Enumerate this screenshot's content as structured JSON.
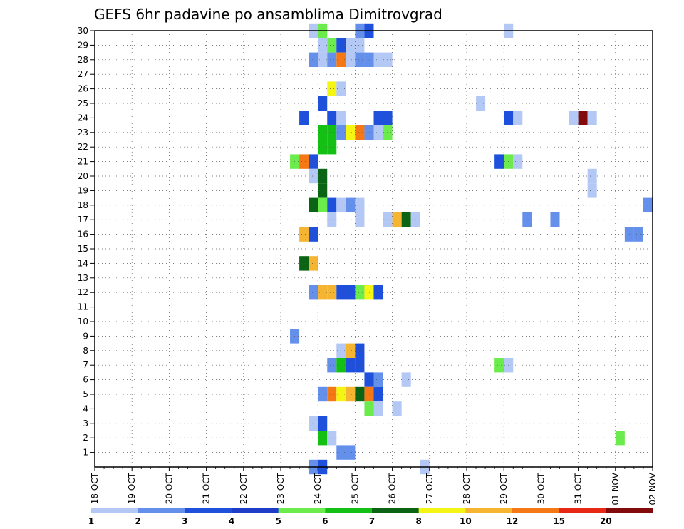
{
  "chart_data": {
    "type": "heatmap",
    "title": "GEFS 6hr padavine po ansamblima Dimitrovgrad",
    "x_ticks": [
      "18 OCT",
      "19 OCT",
      "20 OCT",
      "21 OCT",
      "22 OCT",
      "23 OCT",
      "24 OCT",
      "25 OCT",
      "26 OCT",
      "27 OCT",
      "28 OCT",
      "29 OCT",
      "30 OCT",
      "31 OCT",
      "01 NOV",
      "02 NOV"
    ],
    "y_ticks": [
      "1",
      "2",
      "3",
      "4",
      "5",
      "6",
      "7",
      "8",
      "9",
      "10",
      "11",
      "12",
      "13",
      "14",
      "15",
      "16",
      "17",
      "18",
      "19",
      "20",
      "21",
      "22",
      "23",
      "24",
      "25",
      "26",
      "27",
      "28",
      "29",
      "30"
    ],
    "x_range": [
      "18 OCT 00Z",
      "02 NOV 00Z"
    ],
    "y_range": [
      0,
      30
    ],
    "time_step_hours": 6,
    "grid": true,
    "colorbar_position": "bottom",
    "colorbar": {
      "labels": [
        "1",
        "2",
        "3",
        "4",
        "5",
        "6",
        "7",
        "8",
        "10",
        "12",
        "15",
        "20"
      ],
      "colors": [
        "#b4c8f5",
        "#6490ec",
        "#1e50dc",
        "#1e3cc8",
        "#6cec4c",
        "#14c014",
        "#0a6414",
        "#f5f514",
        "#f5b432",
        "#f57814",
        "#e62814",
        "#820a0a"
      ]
    },
    "points": [
      {
        "t": "23 OCT 18Z",
        "member": 30,
        "value": 1
      },
      {
        "t": "24 OCT 00Z",
        "member": 30,
        "value": 5
      },
      {
        "t": "25 OCT 00Z",
        "member": 30,
        "value": 2
      },
      {
        "t": "25 OCT 06Z",
        "member": 30,
        "value": 3
      },
      {
        "t": "29 OCT 00Z",
        "member": 30,
        "value": 1
      },
      {
        "t": "24 OCT 00Z",
        "member": 29,
        "value": 1
      },
      {
        "t": "24 OCT 06Z",
        "member": 29,
        "value": 5
      },
      {
        "t": "24 OCT 12Z",
        "member": 29,
        "value": 3
      },
      {
        "t": "24 OCT 18Z",
        "member": 29,
        "value": 1
      },
      {
        "t": "25 OCT 00Z",
        "member": 29,
        "value": 1
      },
      {
        "t": "23 OCT 18Z",
        "member": 28,
        "value": 2
      },
      {
        "t": "24 OCT 00Z",
        "member": 28,
        "value": 1
      },
      {
        "t": "24 OCT 06Z",
        "member": 28,
        "value": 2
      },
      {
        "t": "24 OCT 12Z",
        "member": 28,
        "value": 12
      },
      {
        "t": "24 OCT 18Z",
        "member": 28,
        "value": 1
      },
      {
        "t": "25 OCT 00Z",
        "member": 28,
        "value": 2
      },
      {
        "t": "25 OCT 06Z",
        "member": 28,
        "value": 2
      },
      {
        "t": "25 OCT 12Z",
        "member": 28,
        "value": 1
      },
      {
        "t": "25 OCT 18Z",
        "member": 28,
        "value": 1
      },
      {
        "t": "24 OCT 06Z",
        "member": 26,
        "value": 8
      },
      {
        "t": "24 OCT 12Z",
        "member": 26,
        "value": 1
      },
      {
        "t": "24 OCT 00Z",
        "member": 25,
        "value": 3
      },
      {
        "t": "28 OCT 06Z",
        "member": 25,
        "value": 1
      },
      {
        "t": "23 OCT 12Z",
        "member": 24,
        "value": 3
      },
      {
        "t": "24 OCT 06Z",
        "member": 24,
        "value": 3
      },
      {
        "t": "24 OCT 12Z",
        "member": 24,
        "value": 1
      },
      {
        "t": "25 OCT 12Z",
        "member": 24,
        "value": 3
      },
      {
        "t": "25 OCT 18Z",
        "member": 24,
        "value": 3
      },
      {
        "t": "29 OCT 00Z",
        "member": 24,
        "value": 3
      },
      {
        "t": "29 OCT 06Z",
        "member": 24,
        "value": 1
      },
      {
        "t": "30 OCT 18Z",
        "member": 24,
        "value": 1
      },
      {
        "t": "31 OCT 00Z",
        "member": 24,
        "value": 20
      },
      {
        "t": "31 OCT 06Z",
        "member": 24,
        "value": 1
      },
      {
        "t": "24 OCT 00Z",
        "member": 23,
        "value": 6
      },
      {
        "t": "24 OCT 06Z",
        "member": 23,
        "value": 6
      },
      {
        "t": "24 OCT 12Z",
        "member": 23,
        "value": 2
      },
      {
        "t": "24 OCT 18Z",
        "member": 23,
        "value": 8
      },
      {
        "t": "25 OCT 00Z",
        "member": 23,
        "value": 12
      },
      {
        "t": "25 OCT 06Z",
        "member": 23,
        "value": 2
      },
      {
        "t": "25 OCT 12Z",
        "member": 23,
        "value": 1
      },
      {
        "t": "25 OCT 18Z",
        "member": 23,
        "value": 5
      },
      {
        "t": "24 OCT 00Z",
        "member": 22,
        "value": 6
      },
      {
        "t": "24 OCT 06Z",
        "member": 22,
        "value": 6
      },
      {
        "t": "23 OCT 06Z",
        "member": 21,
        "value": 5
      },
      {
        "t": "23 OCT 12Z",
        "member": 21,
        "value": 12
      },
      {
        "t": "23 OCT 18Z",
        "member": 21,
        "value": 3
      },
      {
        "t": "28 OCT 18Z",
        "member": 21,
        "value": 3
      },
      {
        "t": "29 OCT 00Z",
        "member": 21,
        "value": 5
      },
      {
        "t": "29 OCT 06Z",
        "member": 21,
        "value": 1
      },
      {
        "t": "23 OCT 18Z",
        "member": 20,
        "value": 1
      },
      {
        "t": "24 OCT 00Z",
        "member": 20,
        "value": 7
      },
      {
        "t": "31 OCT 06Z",
        "member": 20,
        "value": 1
      },
      {
        "t": "24 OCT 00Z",
        "member": 19,
        "value": 7
      },
      {
        "t": "31 OCT 06Z",
        "member": 19,
        "value": 1
      },
      {
        "t": "23 OCT 18Z",
        "member": 18,
        "value": 7
      },
      {
        "t": "24 OCT 00Z",
        "member": 18,
        "value": 5
      },
      {
        "t": "24 OCT 06Z",
        "member": 18,
        "value": 3
      },
      {
        "t": "24 OCT 12Z",
        "member": 18,
        "value": 1
      },
      {
        "t": "24 OCT 18Z",
        "member": 18,
        "value": 2
      },
      {
        "t": "25 OCT 00Z",
        "member": 18,
        "value": 1
      },
      {
        "t": "01 NOV 18Z",
        "member": 18,
        "value": 2
      },
      {
        "t": "24 OCT 06Z",
        "member": 17,
        "value": 1
      },
      {
        "t": "25 OCT 00Z",
        "member": 17,
        "value": 1
      },
      {
        "t": "25 OCT 18Z",
        "member": 17,
        "value": 1
      },
      {
        "t": "26 OCT 00Z",
        "member": 17,
        "value": 10
      },
      {
        "t": "26 OCT 06Z",
        "member": 17,
        "value": 7
      },
      {
        "t": "26 OCT 12Z",
        "member": 17,
        "value": 1
      },
      {
        "t": "29 OCT 12Z",
        "member": 17,
        "value": 2
      },
      {
        "t": "30 OCT 06Z",
        "member": 17,
        "value": 2
      },
      {
        "t": "23 OCT 12Z",
        "member": 16,
        "value": 10
      },
      {
        "t": "23 OCT 18Z",
        "member": 16,
        "value": 3
      },
      {
        "t": "01 NOV 06Z",
        "member": 16,
        "value": 2
      },
      {
        "t": "01 NOV 12Z",
        "member": 16,
        "value": 2
      },
      {
        "t": "23 OCT 12Z",
        "member": 14,
        "value": 7
      },
      {
        "t": "23 OCT 18Z",
        "member": 14,
        "value": 10
      },
      {
        "t": "23 OCT 18Z",
        "member": 12,
        "value": 2
      },
      {
        "t": "24 OCT 00Z",
        "member": 12,
        "value": 10
      },
      {
        "t": "24 OCT 06Z",
        "member": 12,
        "value": 10
      },
      {
        "t": "24 OCT 12Z",
        "member": 12,
        "value": 3
      },
      {
        "t": "24 OCT 18Z",
        "member": 12,
        "value": 3
      },
      {
        "t": "25 OCT 00Z",
        "member": 12,
        "value": 5
      },
      {
        "t": "25 OCT 06Z",
        "member": 12,
        "value": 8
      },
      {
        "t": "25 OCT 12Z",
        "member": 12,
        "value": 3
      },
      {
        "t": "23 OCT 06Z",
        "member": 9,
        "value": 2
      },
      {
        "t": "24 OCT 12Z",
        "member": 8,
        "value": 1
      },
      {
        "t": "24 OCT 18Z",
        "member": 8,
        "value": 10
      },
      {
        "t": "25 OCT 00Z",
        "member": 8,
        "value": 3
      },
      {
        "t": "24 OCT 06Z",
        "member": 7,
        "value": 2
      },
      {
        "t": "24 OCT 12Z",
        "member": 7,
        "value": 6
      },
      {
        "t": "24 OCT 18Z",
        "member": 7,
        "value": 3
      },
      {
        "t": "25 OCT 00Z",
        "member": 7,
        "value": 3
      },
      {
        "t": "28 OCT 18Z",
        "member": 7,
        "value": 5
      },
      {
        "t": "29 OCT 00Z",
        "member": 7,
        "value": 1
      },
      {
        "t": "25 OCT 06Z",
        "member": 6,
        "value": 3
      },
      {
        "t": "25 OCT 12Z",
        "member": 6,
        "value": 2
      },
      {
        "t": "26 OCT 06Z",
        "member": 6,
        "value": 1
      },
      {
        "t": "24 OCT 00Z",
        "member": 5,
        "value": 2
      },
      {
        "t": "24 OCT 06Z",
        "member": 5,
        "value": 12
      },
      {
        "t": "24 OCT 12Z",
        "member": 5,
        "value": 8
      },
      {
        "t": "24 OCT 18Z",
        "member": 5,
        "value": 10
      },
      {
        "t": "25 OCT 00Z",
        "member": 5,
        "value": 7
      },
      {
        "t": "25 OCT 06Z",
        "member": 5,
        "value": 12
      },
      {
        "t": "25 OCT 12Z",
        "member": 5,
        "value": 3
      },
      {
        "t": "25 OCT 06Z",
        "member": 4,
        "value": 5
      },
      {
        "t": "25 OCT 12Z",
        "member": 4,
        "value": 1
      },
      {
        "t": "26 OCT 00Z",
        "member": 4,
        "value": 1
      },
      {
        "t": "23 OCT 18Z",
        "member": 3,
        "value": 1
      },
      {
        "t": "24 OCT 00Z",
        "member": 3,
        "value": 3
      },
      {
        "t": "24 OCT 00Z",
        "member": 2,
        "value": 6
      },
      {
        "t": "24 OCT 06Z",
        "member": 2,
        "value": 1
      },
      {
        "t": "01 NOV 00Z",
        "member": 2,
        "value": 5
      },
      {
        "t": "24 OCT 12Z",
        "member": 1,
        "value": 2
      },
      {
        "t": "24 OCT 18Z",
        "member": 1,
        "value": 2
      },
      {
        "t": "23 OCT 18Z",
        "member": 0,
        "value": 2
      },
      {
        "t": "24 OCT 00Z",
        "member": 0,
        "value": 3
      },
      {
        "t": "26 OCT 18Z",
        "member": 0,
        "value": 1
      }
    ]
  }
}
